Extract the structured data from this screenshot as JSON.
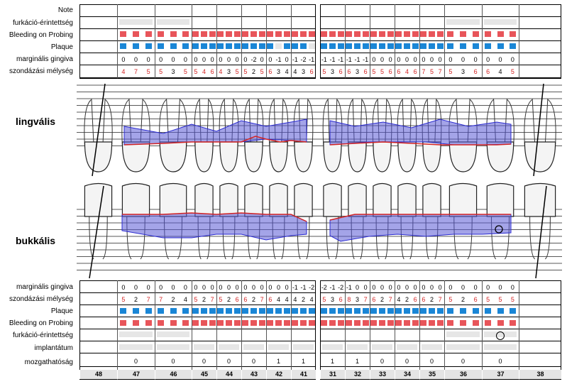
{
  "top_labels": {
    "note": "Note",
    "furcation": "furkáció-érintettség",
    "bleeding": "Bleeding on Probing",
    "plaque": "Plaque",
    "gingiva": "marginális gingiva",
    "probing": "szondázási mélység"
  },
  "bottom_labels": {
    "gingiva": "marginális gingiva",
    "probing": "szondázási mélység",
    "plaque": "Plaque",
    "bleeding": "Bleeding on Probing",
    "furcation": "furkáció-érintettség",
    "implant": "implantátum",
    "mobility": "mozgathatóság"
  },
  "side_labels": {
    "lingual": "lingvális",
    "buccal": "bukkális"
  },
  "colors": {
    "bleeding": "#e8555a",
    "plaque": "#1a86d6",
    "gray": "#e6e6e6",
    "area": "#5a5ad6",
    "gum": "#d32424"
  },
  "teeth": [
    "48",
    "47",
    "46",
    "45",
    "44",
    "43",
    "42",
    "41",
    "31",
    "32",
    "33",
    "34",
    "35",
    "36",
    "37",
    "38"
  ],
  "top": {
    "gingiva": [
      [],
      [
        "0",
        "0",
        "0"
      ],
      [
        "0",
        "0",
        "0"
      ],
      [
        "0",
        "0",
        "0"
      ],
      [
        "0",
        "0",
        "0"
      ],
      [
        "0",
        "-2",
        "0"
      ],
      [
        "0",
        "-1",
        "0"
      ],
      [
        "-1",
        "-2",
        "-1"
      ],
      [
        "-1",
        "-1",
        "-1"
      ],
      [
        "-1",
        "-1",
        "-1"
      ],
      [
        "0",
        "0",
        "0"
      ],
      [
        "0",
        "0",
        "0"
      ],
      [
        "0",
        "0",
        "0"
      ],
      [
        "0",
        "0",
        "0"
      ],
      [
        "0",
        "0",
        "0"
      ],
      []
    ],
    "probing": [
      [],
      [
        "4",
        "7",
        "5"
      ],
      [
        "5",
        "3",
        "5"
      ],
      [
        "5",
        "4",
        "6"
      ],
      [
        "4",
        "3",
        "5"
      ],
      [
        "5",
        "2",
        "5"
      ],
      [
        "6",
        "3",
        "4"
      ],
      [
        "4",
        "3",
        "6"
      ],
      [
        "5",
        "3",
        "6"
      ],
      [
        "6",
        "3",
        "6"
      ],
      [
        "5",
        "5",
        "6"
      ],
      [
        "6",
        "4",
        "6"
      ],
      [
        "7",
        "5",
        "7"
      ],
      [
        "5",
        "3",
        "6"
      ],
      [
        "6",
        "4",
        "5"
      ],
      []
    ],
    "probing_red": [
      [],
      [
        true,
        true,
        true
      ],
      [
        true,
        false,
        true
      ],
      [
        true,
        true,
        true
      ],
      [
        true,
        false,
        true
      ],
      [
        true,
        false,
        true
      ],
      [
        true,
        false,
        false
      ],
      [
        false,
        false,
        true
      ],
      [
        true,
        false,
        true
      ],
      [
        true,
        false,
        true
      ],
      [
        true,
        true,
        true
      ],
      [
        true,
        true,
        true
      ],
      [
        true,
        true,
        true
      ],
      [
        true,
        false,
        true
      ],
      [
        true,
        false,
        true
      ],
      []
    ],
    "gingiva_red": [
      [],
      [
        false,
        false,
        false
      ],
      [
        false,
        false,
        false
      ],
      [
        false,
        false,
        false
      ],
      [
        false,
        false,
        false
      ],
      [
        false,
        true,
        false
      ],
      [
        false,
        false,
        false
      ],
      [
        false,
        false,
        false
      ],
      [
        false,
        false,
        false
      ],
      [
        false,
        false,
        false
      ],
      [
        false,
        false,
        false
      ],
      [
        false,
        false,
        false
      ],
      [
        false,
        false,
        false
      ],
      [
        false,
        false,
        false
      ],
      [
        false,
        false,
        false
      ],
      []
    ]
  },
  "bottom": {
    "gingiva": [
      [],
      [
        "0",
        "0",
        "0"
      ],
      [
        "0",
        "0",
        "0"
      ],
      [
        "0",
        "0",
        "0"
      ],
      [
        "0",
        "0",
        "0"
      ],
      [
        "0",
        "0",
        "0"
      ],
      [
        "0",
        "0",
        "0"
      ],
      [
        "-1",
        "-1",
        "-2"
      ],
      [
        "-2",
        "-1",
        "-2"
      ],
      [
        "-1",
        "0",
        "0"
      ],
      [
        "0",
        "0",
        "0"
      ],
      [
        "0",
        "0",
        "0"
      ],
      [
        "0",
        "0",
        "0"
      ],
      [
        "0",
        "0",
        "0"
      ],
      [
        "0",
        "0",
        "0"
      ],
      []
    ],
    "probing": [
      [],
      [
        "5",
        "2",
        "7"
      ],
      [
        "7",
        "2",
        "4"
      ],
      [
        "5",
        "2",
        "7"
      ],
      [
        "5",
        "2",
        "6"
      ],
      [
        "6",
        "2",
        "7"
      ],
      [
        "6",
        "4",
        "4"
      ],
      [
        "4",
        "2",
        "4"
      ],
      [
        "5",
        "3",
        "6"
      ],
      [
        "8",
        "3",
        "7"
      ],
      [
        "6",
        "2",
        "7"
      ],
      [
        "4",
        "2",
        "6"
      ],
      [
        "6",
        "2",
        "7"
      ],
      [
        "5",
        "2",
        "6"
      ],
      [
        "5",
        "5",
        "5"
      ],
      []
    ],
    "mobility": [
      "",
      "0",
      "0",
      "0",
      "0",
      "0",
      "1",
      "1",
      "1",
      "1",
      "0",
      "0",
      "0",
      "0",
      "0",
      ""
    ]
  },
  "plaque_top": [
    [],
    [
      1,
      1,
      1
    ],
    [
      1,
      1,
      1
    ],
    [
      1,
      1,
      1
    ],
    [
      1,
      1,
      1
    ],
    [
      1,
      1,
      1
    ],
    [
      1,
      0,
      1
    ],
    [
      1,
      1,
      0
    ],
    [
      1,
      1,
      1
    ],
    [
      1,
      1,
      1
    ],
    [
      1,
      1,
      1
    ],
    [
      1,
      1,
      1
    ],
    [
      1,
      1,
      1
    ],
    [
      1,
      1,
      1
    ],
    [
      1,
      1,
      1
    ],
    []
  ],
  "bleed_top": [
    [],
    [
      1,
      1,
      1
    ],
    [
      1,
      1,
      1
    ],
    [
      1,
      1,
      1
    ],
    [
      1,
      1,
      1
    ],
    [
      1,
      1,
      1
    ],
    [
      1,
      1,
      1
    ],
    [
      1,
      1,
      1
    ],
    [
      1,
      1,
      1
    ],
    [
      1,
      1,
      1
    ],
    [
      1,
      1,
      1
    ],
    [
      1,
      1,
      1
    ],
    [
      1,
      1,
      1
    ],
    [
      1,
      1,
      1
    ],
    [
      1,
      1,
      1
    ],
    []
  ],
  "furcation_bottom_circle_tooth": "37"
}
